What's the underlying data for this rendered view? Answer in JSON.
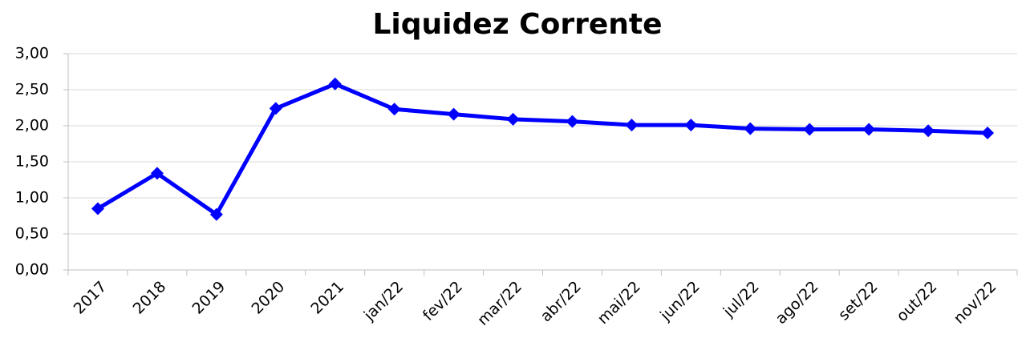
{
  "chart_data": {
    "type": "line",
    "title": "Liquidez Corrente",
    "categories": [
      "2017",
      "2018",
      "2019",
      "2020",
      "2021",
      "jan/22",
      "fev/22",
      "mar/22",
      "abr/22",
      "mai/22",
      "jun/22",
      "jul/22",
      "ago/22",
      "set/22",
      "out/22",
      "nov/22"
    ],
    "series": [
      {
        "name": "Liquidez Corrente",
        "color": "#0000ff",
        "values": [
          0.85,
          1.34,
          0.77,
          2.24,
          2.58,
          2.23,
          2.16,
          2.09,
          2.06,
          2.01,
          2.01,
          1.96,
          1.95,
          1.95,
          1.93,
          1.9
        ]
      }
    ],
    "ylim": [
      0,
      3
    ],
    "yticks": [
      {
        "value": 0,
        "label": "0,00"
      },
      {
        "value": 0.5,
        "label": "0,50"
      },
      {
        "value": 1,
        "label": "1,00"
      },
      {
        "value": 1.5,
        "label": "1,50"
      },
      {
        "value": 2,
        "label": "2,00"
      },
      {
        "value": 2.5,
        "label": "2,50"
      },
      {
        "value": 3,
        "label": "3,00"
      }
    ],
    "grid": true
  }
}
